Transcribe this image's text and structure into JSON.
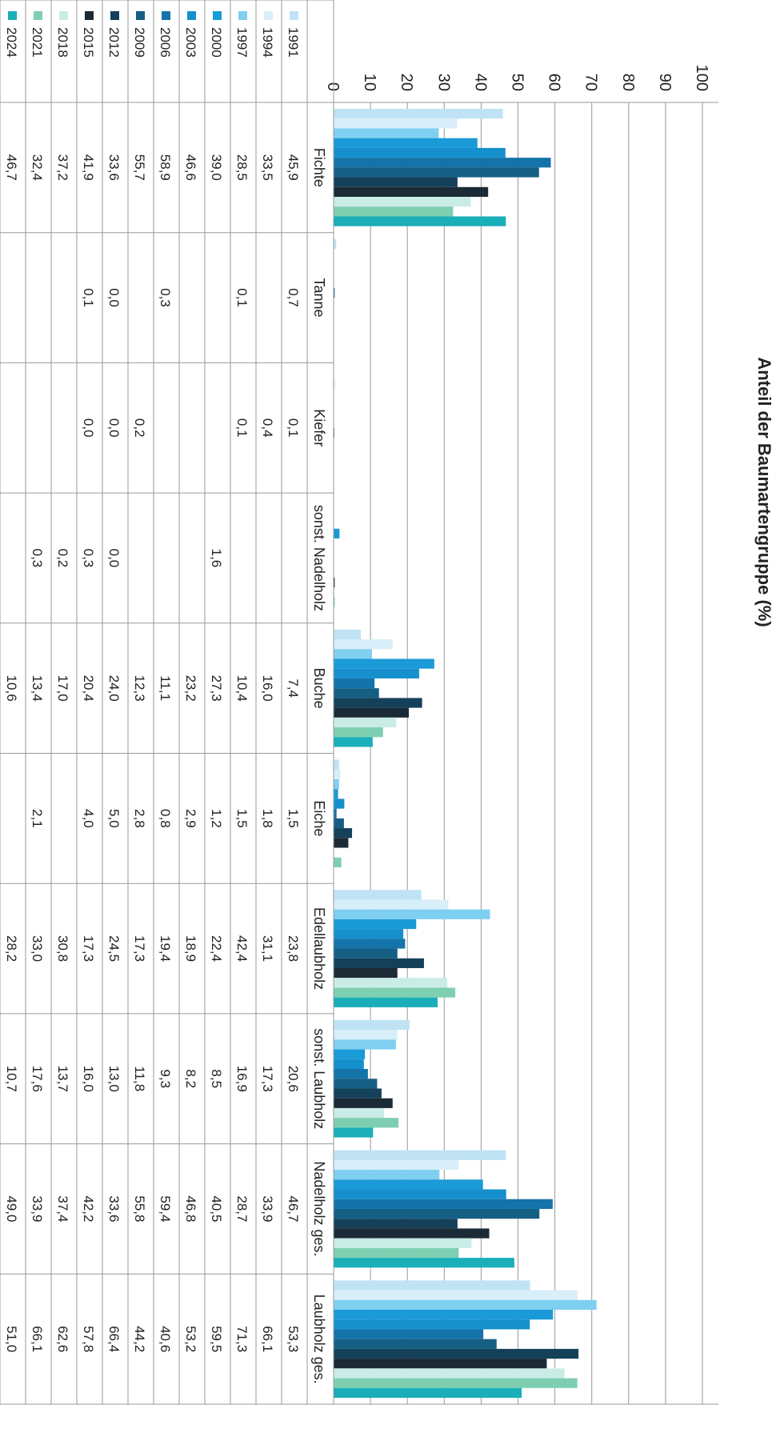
{
  "chart_data": {
    "type": "bar",
    "title": "",
    "ylabel": "Anteil der Baumartengruppe (%)",
    "xlabel": "",
    "ylim": [
      0,
      100
    ],
    "yticks": [
      "0",
      "10",
      "20",
      "30",
      "40",
      "50",
      "60",
      "70",
      "80",
      "90",
      "100"
    ],
    "grid": true,
    "legend": "left",
    "categories": [
      "Fichte",
      "Tanne",
      "Kiefer",
      "sonst. Nadelholz",
      "Buche",
      "Eiche",
      "Edellaubholz",
      "sonst. Laubholz",
      "Nadelholz ges.",
      "Laubholz ges."
    ],
    "series": [
      {
        "name": "1991",
        "color": "#bfe3f5",
        "values": [
          45.9,
          0.7,
          0.1,
          null,
          7.4,
          1.5,
          23.8,
          20.6,
          46.7,
          53.3
        ],
        "labels": [
          "45,9",
          "0,7",
          "0,1",
          "",
          "7,4",
          "1,5",
          "23,8",
          "20,6",
          "46,7",
          "53,3"
        ]
      },
      {
        "name": "1994",
        "color": "#d8eef8",
        "values": [
          33.5,
          null,
          0.4,
          null,
          16.0,
          1.8,
          31.1,
          17.3,
          33.9,
          66.1
        ],
        "labels": [
          "33,5",
          "",
          "0,4",
          "",
          "16,0",
          "1,8",
          "31,1",
          "17,3",
          "33,9",
          "66,1"
        ]
      },
      {
        "name": "1997",
        "color": "#7fcff0",
        "values": [
          28.5,
          0.1,
          0.1,
          null,
          10.4,
          1.5,
          42.4,
          16.9,
          28.7,
          71.3
        ],
        "labels": [
          "28,5",
          "0,1",
          "0,1",
          "",
          "10,4",
          "1,5",
          "42,4",
          "16,9",
          "28,7",
          "71,3"
        ]
      },
      {
        "name": "2000",
        "color": "#1a9ad6",
        "values": [
          39.0,
          null,
          null,
          1.6,
          27.3,
          1.2,
          22.4,
          8.5,
          40.5,
          59.5
        ],
        "labels": [
          "39,0",
          "",
          "",
          "1,6",
          "27,3",
          "1,2",
          "22,4",
          "8,5",
          "40,5",
          "59,5"
        ]
      },
      {
        "name": "2003",
        "color": "#1690cc",
        "values": [
          46.6,
          null,
          null,
          null,
          23.2,
          2.9,
          18.9,
          8.2,
          46.8,
          53.2
        ],
        "labels": [
          "46,6",
          "",
          "",
          "",
          "23,2",
          "2,9",
          "18,9",
          "8,2",
          "46,8",
          "53,2"
        ]
      },
      {
        "name": "2006",
        "color": "#1473a8",
        "values": [
          58.9,
          0.3,
          null,
          null,
          11.1,
          0.8,
          19.4,
          9.3,
          59.4,
          40.6
        ],
        "labels": [
          "58,9",
          "0,3",
          "",
          "",
          "11,1",
          "0,8",
          "19,4",
          "9,3",
          "59,4",
          "40,6"
        ]
      },
      {
        "name": "2009",
        "color": "#155f85",
        "values": [
          55.7,
          null,
          0.2,
          null,
          12.3,
          2.8,
          17.3,
          11.8,
          55.8,
          44.2
        ],
        "labels": [
          "55,7",
          "",
          "0,2",
          "",
          "12,3",
          "2,8",
          "17,3",
          "11,8",
          "55,8",
          "44,2"
        ]
      },
      {
        "name": "2012",
        "color": "#15405a",
        "values": [
          33.6,
          0.0,
          0.0,
          0.0,
          24.0,
          5.0,
          24.5,
          13.0,
          33.6,
          66.4
        ],
        "labels": [
          "33,6",
          "0,0",
          "0,0",
          "0,0",
          "24,0",
          "5,0",
          "24,5",
          "13,0",
          "33,6",
          "66,4"
        ]
      },
      {
        "name": "2015",
        "color": "#1c2a36",
        "values": [
          41.9,
          0.1,
          0.0,
          0.3,
          20.4,
          4.0,
          17.3,
          16.0,
          42.2,
          57.8
        ],
        "labels": [
          "41,9",
          "0,1",
          "0,0",
          "0,3",
          "20,4",
          "4,0",
          "17,3",
          "16,0",
          "42,2",
          "57,8"
        ]
      },
      {
        "name": "2018",
        "color": "#c9ece6",
        "values": [
          37.2,
          null,
          null,
          0.2,
          17.0,
          null,
          30.8,
          13.7,
          37.4,
          62.6
        ],
        "labels": [
          "37,2",
          "",
          "",
          "0,2",
          "17,0",
          "",
          "30,8",
          "13,7",
          "37,4",
          "62,6"
        ]
      },
      {
        "name": "2021",
        "color": "#7ecfb2",
        "values": [
          32.4,
          null,
          null,
          0.3,
          13.4,
          2.1,
          33.0,
          17.6,
          33.9,
          66.1
        ],
        "labels": [
          "32,4",
          "",
          "",
          "0,3",
          "13,4",
          "2,1",
          "33,0",
          "17,6",
          "33,9",
          "66,1"
        ]
      },
      {
        "name": "2024",
        "color": "#1aaeb8",
        "values": [
          46.7,
          null,
          null,
          null,
          10.6,
          null,
          28.2,
          10.7,
          49.0,
          51.0
        ],
        "labels": [
          "46,7",
          "",
          "",
          "",
          "10,6",
          "",
          "28,2",
          "10,7",
          "49,0",
          "51,0"
        ]
      }
    ]
  }
}
